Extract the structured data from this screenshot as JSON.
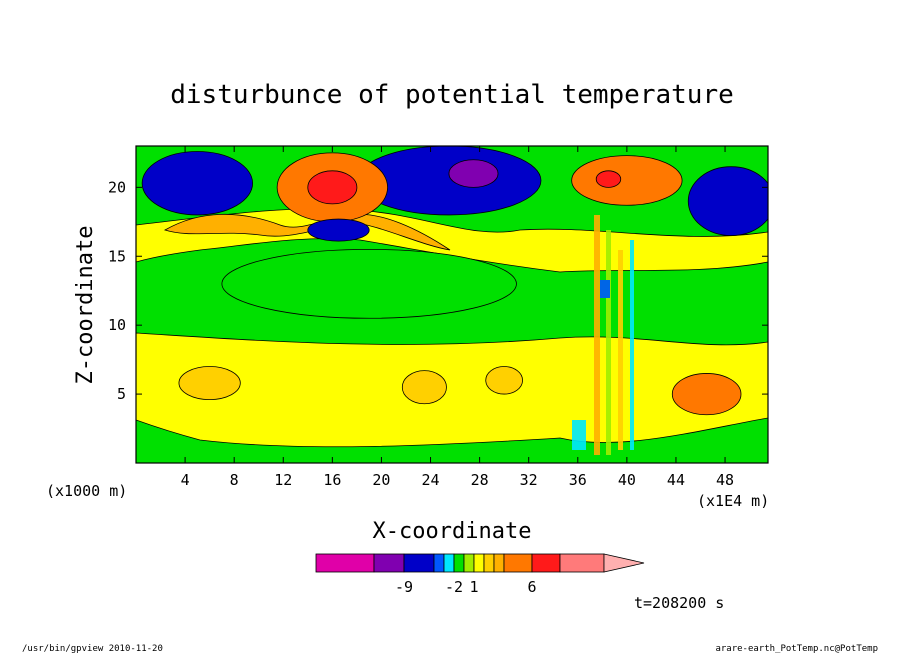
{
  "footer": {
    "left": "/usr/bin/gpview  2010-11-20",
    "right": "arare-earth_PotTemp.nc@PotTemp"
  },
  "time_label": "t=208200 s",
  "colors": {
    "background": "#ffffff",
    "levels": [
      "#e000a8",
      "#8000b0",
      "#0000c8",
      "#0058ff",
      "#00e8ff",
      "#00e000",
      "#a0ee00",
      "#ffff00",
      "#ffd000",
      "#ffb000",
      "#ff7800",
      "#ff1a1a",
      "#ff7a7a",
      "#ffb0b0"
    ]
  },
  "chart_data": {
    "type": "heatmap",
    "title": "disturbunce of potential temperature",
    "xlabel": "X-coordinate",
    "ylabel": "Z-coordinate",
    "x_units_left": "(x1000 m)",
    "x_units_right": "(x1E4 m)",
    "xlim": [
      0,
      51.5
    ],
    "ylim": [
      0,
      23
    ],
    "x_ticks": [
      "4",
      "8",
      "12",
      "16",
      "20",
      "24",
      "28",
      "32",
      "36",
      "40",
      "44",
      "48"
    ],
    "x_tick_values": [
      4,
      8,
      12,
      16,
      20,
      24,
      28,
      32,
      36,
      40,
      44,
      48
    ],
    "y_ticks": [
      "5",
      "10",
      "15",
      "20"
    ],
    "y_tick_values": [
      5,
      10,
      15,
      20
    ],
    "colorbar": {
      "labels": [
        "-9",
        "-2",
        "1",
        "6"
      ],
      "label_values": [
        -9,
        -2,
        1,
        6
      ],
      "extend": "max"
    },
    "regions": [
      {
        "x": 25.5,
        "y": 20.5,
        "rx": 7.5,
        "ry": 2.5,
        "level": 2
      },
      {
        "x": 27.5,
        "y": 21.0,
        "rx": 2.0,
        "ry": 1.0,
        "level": 1
      },
      {
        "x": 5.0,
        "y": 20.3,
        "rx": 4.5,
        "ry": 2.3,
        "level": 2
      },
      {
        "x": 48.5,
        "y": 19.0,
        "rx": 3.5,
        "ry": 2.5,
        "level": 2
      },
      {
        "x": 16.0,
        "y": 20.0,
        "rx": 4.5,
        "ry": 2.5,
        "level": 10
      },
      {
        "x": 16.0,
        "y": 20.0,
        "rx": 2.0,
        "ry": 1.2,
        "level": 11
      },
      {
        "x": 40.0,
        "y": 20.5,
        "rx": 4.5,
        "ry": 1.8,
        "level": 10
      },
      {
        "x": 38.5,
        "y": 20.6,
        "rx": 1.0,
        "ry": 0.6,
        "level": 11
      },
      {
        "x": 16.5,
        "y": 16.9,
        "rx": 2.5,
        "ry": 0.8,
        "level": 2
      },
      {
        "x": 19.0,
        "y": 13.0,
        "rx": 12.0,
        "ry": 2.5,
        "level": 5
      },
      {
        "x": 6.0,
        "y": 5.8,
        "rx": 2.5,
        "ry": 1.2,
        "level": 8
      },
      {
        "x": 23.5,
        "y": 5.5,
        "rx": 1.8,
        "ry": 1.2,
        "level": 8
      },
      {
        "x": 30.0,
        "y": 6.0,
        "rx": 1.5,
        "ry": 1.0,
        "level": 8
      },
      {
        "x": 46.5,
        "y": 5.0,
        "rx": 2.8,
        "ry": 1.5,
        "level": 10
      }
    ]
  }
}
